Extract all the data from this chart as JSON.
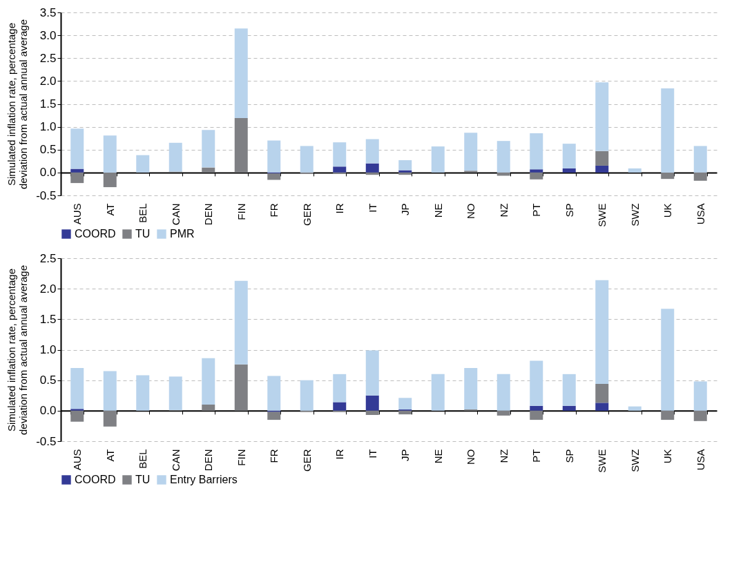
{
  "chart_data": [
    {
      "type": "bar",
      "stacked": true,
      "ylabel": "Simulated inflation rate, percentage deviation from actual annual average",
      "categories": [
        "AUS",
        "AT",
        "BEL",
        "CAN",
        "DEN",
        "FIN",
        "FR",
        "GER",
        "IR",
        "IT",
        "JP",
        "NE",
        "NO",
        "NZ",
        "PT",
        "SP",
        "SWE",
        "SWZ",
        "UK",
        "USA"
      ],
      "ylim": [
        -0.5,
        3.5
      ],
      "yticks": [
        {
          "value": -0.5,
          "label": "-0.5"
        },
        {
          "value": 0,
          "label": "0.0"
        },
        {
          "value": 0.5,
          "label": "0.5"
        },
        {
          "value": 1,
          "label": "1.0"
        },
        {
          "value": 1.5,
          "label": "1.5"
        },
        {
          "value": 2,
          "label": "2.0"
        },
        {
          "value": 2.5,
          "label": "2.5"
        },
        {
          "value": 3,
          "label": "3.0"
        },
        {
          "value": 3.5,
          "label": "3.5"
        }
      ],
      "grid": "y",
      "legend": "bottom",
      "series": [
        {
          "name": "COORD",
          "color": "#333a96",
          "values": [
            0.08,
            0,
            0,
            0,
            0,
            0,
            -0.02,
            0,
            0.13,
            0.2,
            0.05,
            0,
            0,
            0,
            0.07,
            0.09,
            0.15,
            0,
            0,
            0
          ]
        },
        {
          "name": "TU",
          "color": "#7f8084",
          "values": [
            -0.23,
            -0.32,
            0,
            0.02,
            0.11,
            1.19,
            -0.14,
            -0.03,
            -0.03,
            -0.05,
            -0.05,
            0,
            0.04,
            -0.07,
            -0.15,
            0,
            0.32,
            0,
            -0.14,
            -0.18
          ]
        },
        {
          "name": "PMR",
          "color": "#b8d3ec",
          "values": [
            0.88,
            0.81,
            0.38,
            0.63,
            0.82,
            1.96,
            0.7,
            0.58,
            0.53,
            0.53,
            0.22,
            0.57,
            0.83,
            0.69,
            0.79,
            0.54,
            1.5,
            0.09,
            1.84,
            0.58
          ]
        }
      ]
    },
    {
      "type": "bar",
      "stacked": true,
      "ylabel": "Simulated inflation rate, percentage deviation from actual annual average",
      "categories": [
        "AUS",
        "AT",
        "BEL",
        "CAN",
        "DEN",
        "FIN",
        "FR",
        "GER",
        "IR",
        "IT",
        "JP",
        "NE",
        "NO",
        "NZ",
        "PT",
        "SP",
        "SWE",
        "SWZ",
        "UK",
        "USA"
      ],
      "ylim": [
        -0.5,
        2.5
      ],
      "yticks": [
        {
          "value": -0.5,
          "label": "-0.5"
        },
        {
          "value": 0,
          "label": "0.0"
        },
        {
          "value": 0.5,
          "label": "0.5"
        },
        {
          "value": 1,
          "label": "1.0"
        },
        {
          "value": 1.5,
          "label": "1.5"
        },
        {
          "value": 2,
          "label": "2.0"
        },
        {
          "value": 2.5,
          "label": "2.5"
        }
      ],
      "grid": "y",
      "legend": "bottom",
      "series": [
        {
          "name": "COORD",
          "color": "#333a96",
          "values": [
            0.03,
            0,
            0,
            0,
            0,
            0,
            -0.02,
            0,
            0.14,
            0.25,
            0.02,
            0,
            0,
            0,
            0.08,
            0.08,
            0.13,
            0,
            0,
            0
          ]
        },
        {
          "name": "TU",
          "color": "#7f8084",
          "values": [
            -0.18,
            -0.26,
            0,
            0.01,
            0.1,
            0.76,
            -0.13,
            -0.02,
            -0.02,
            -0.07,
            -0.06,
            0,
            0.02,
            -0.08,
            -0.15,
            0,
            0.31,
            0,
            -0.15,
            -0.17
          ]
        },
        {
          "name": "Entry Barriers",
          "color": "#b8d3ec",
          "values": [
            0.67,
            0.65,
            0.58,
            0.55,
            0.76,
            1.37,
            0.57,
            0.5,
            0.46,
            0.74,
            0.19,
            0.6,
            0.68,
            0.6,
            0.74,
            0.52,
            1.7,
            0.07,
            1.67,
            0.48
          ]
        }
      ]
    }
  ]
}
